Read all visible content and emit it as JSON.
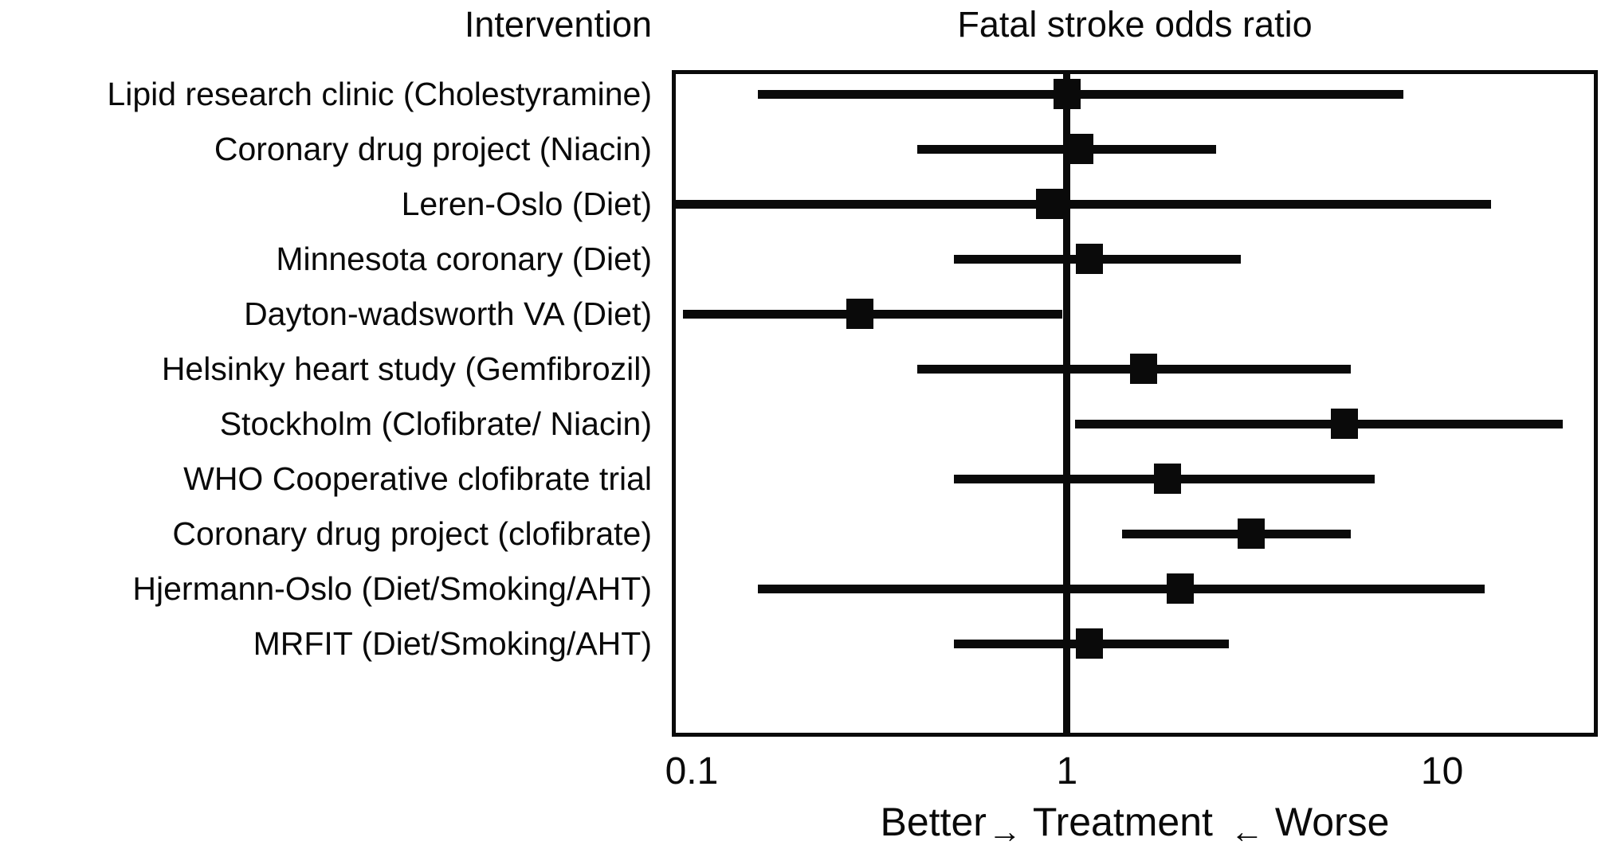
{
  "figure": {
    "column_header": "Intervention",
    "plot_header": "Fatal stroke odds ratio"
  },
  "x_axis": {
    "tick_labels": [
      "0.1",
      "1",
      "10"
    ],
    "footer": {
      "better": "Better",
      "arrow_right": "→",
      "treatment": "Treatment",
      "arrow_left": "←",
      "worse": "Worse"
    }
  },
  "chart_data": {
    "type": "scatter",
    "variant": "forest-plot",
    "title": "Fatal stroke odds ratio",
    "left_column_title": "Intervention",
    "xlabel": "Better→ Treatment ← Worse",
    "x_scale": "log",
    "xlim": [
      0.0885,
      26
    ],
    "x_ticks": [
      0.1,
      1,
      10
    ],
    "x_tick_labels": [
      "0.1",
      "1",
      "10"
    ],
    "reference_line_x": 1,
    "marker": "filled-square",
    "grid": false,
    "legend": null,
    "colors": {
      "marker": "#0a0a0a",
      "line": "#0a0a0a",
      "background": "#ffffff"
    },
    "studies": [
      {
        "label": "Lipid research clinic (Cholestyramine)",
        "or": 1.0,
        "ci_low": 0.15,
        "ci_high": 7.9
      },
      {
        "label": "Coronary drug project (Niacin)",
        "or": 1.08,
        "ci_low": 0.4,
        "ci_high": 2.5
      },
      {
        "label": "Leren-Oslo (Diet)",
        "or": 0.9,
        "ci_low": 0.09,
        "ci_high": 13.5
      },
      {
        "label": "Minnesota coronary (Diet)",
        "or": 1.15,
        "ci_low": 0.5,
        "ci_high": 2.9
      },
      {
        "label": "Dayton-wadsworth VA (Diet)",
        "or": 0.28,
        "ci_low": 0.095,
        "ci_high": 0.97
      },
      {
        "label": "Helsinky heart study (Gemfibrozil)",
        "or": 1.6,
        "ci_low": 0.4,
        "ci_high": 5.7
      },
      {
        "label": "Stockholm (Clofibrate/ Niacin)",
        "or": 5.5,
        "ci_low": 1.05,
        "ci_high": 21
      },
      {
        "label": "WHO Cooperative clofibrate trial",
        "or": 1.85,
        "ci_low": 0.5,
        "ci_high": 6.6
      },
      {
        "label": "Coronary drug project (clofibrate)",
        "or": 3.1,
        "ci_low": 1.4,
        "ci_high": 5.7
      },
      {
        "label": "Hjermann-Oslo (Diet/Smoking/AHT)",
        "or": 2.0,
        "ci_low": 0.15,
        "ci_high": 13
      },
      {
        "label": "MRFIT (Diet/Smoking/AHT)",
        "or": 1.15,
        "ci_low": 0.5,
        "ci_high": 2.7
      }
    ]
  }
}
